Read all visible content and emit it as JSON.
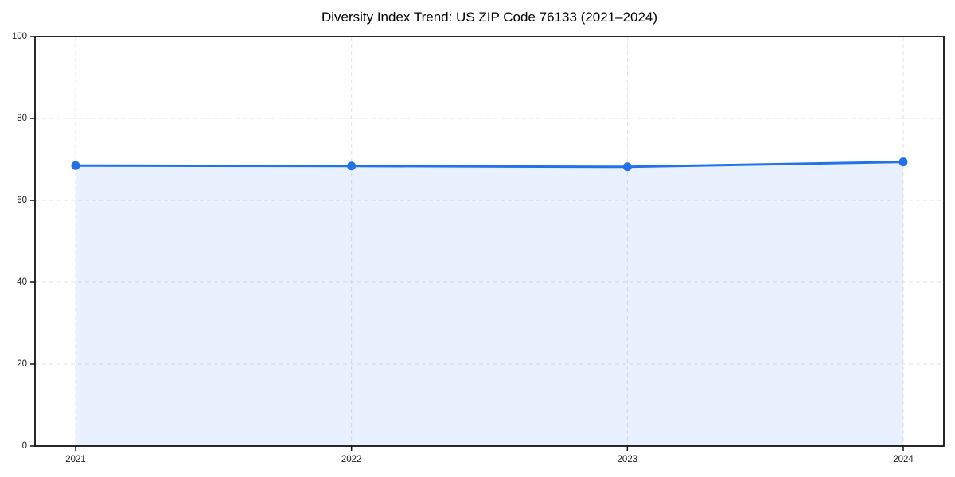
{
  "chart_data": {
    "type": "line",
    "title": "Diversity Index Trend: US ZIP Code 76133 (2021–2024)",
    "categories": [
      "2021",
      "2022",
      "2023",
      "2024"
    ],
    "series": [
      {
        "name": "Diversity Index",
        "values": [
          68.5,
          68.4,
          68.2,
          69.4
        ]
      }
    ],
    "xlabel": "",
    "ylabel": "",
    "ylim": [
      0,
      100
    ],
    "yticks": [
      0,
      20,
      40,
      60,
      80,
      100
    ],
    "grid": {
      "show": true,
      "style": "dashed",
      "color": "#e3e3e3"
    },
    "legend": {
      "show": false,
      "position": "none"
    },
    "area_fill": true,
    "markers": true,
    "colors": {
      "line": "#2273e8",
      "marker": "#2273e8",
      "area": "#2273e8",
      "area_opacity": "0.1",
      "axis": "#111111",
      "tick_text": "#1a1a1a",
      "title_text": "#000000"
    }
  }
}
